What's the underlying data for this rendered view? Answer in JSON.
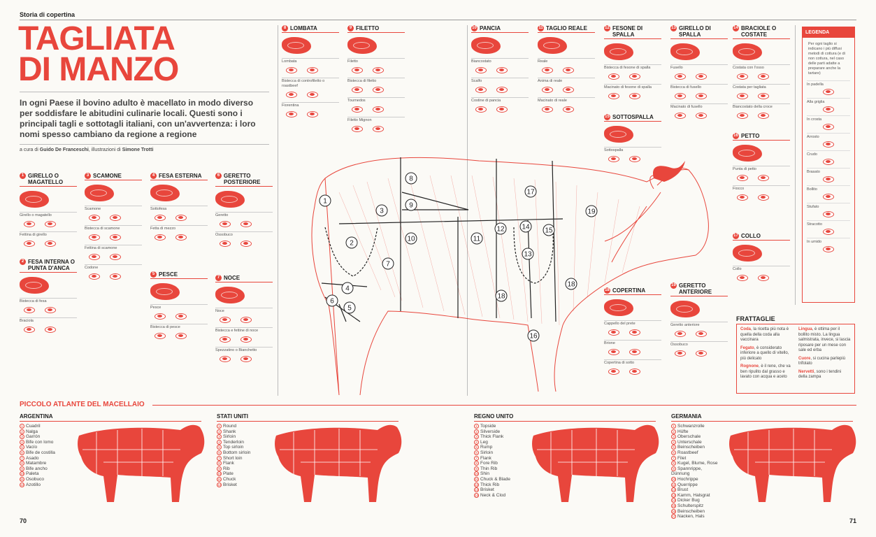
{
  "header": {
    "kicker": "Storia di copertina"
  },
  "title": {
    "line1": "TAGLIATA",
    "line2": "DI MANZO"
  },
  "intro": "In ogni Paese il bovino adulto è macellato in modo diverso per soddisfare le abitudini culinarie locali. Questi sono i principali tagli e sottotagli italiani, con un'avvertenza: i loro nomi spesso cambiano da regione a regione",
  "credits": {
    "prefix": "a cura di ",
    "author": "Guido De Franceschi",
    "mid": ", illustrazioni di ",
    "illustrator": "Simone Trotti"
  },
  "cuts": [
    {
      "id": "1",
      "title": "GIRELLO O MAGATELLO",
      "subs": [
        "Girello o magatello",
        "Fettina di girello"
      ]
    },
    {
      "id": "2",
      "title": "FESA INTERNA O PUNTA D'ANCA",
      "subs": [
        "Bistecca di fesa",
        "Braciola"
      ]
    },
    {
      "id": "3",
      "title": "SCAMONE",
      "subs": [
        "Scamone",
        "Bistecca di scamone",
        "Fettina di scamone",
        "Codone"
      ]
    },
    {
      "id": "4",
      "title": "FESA ESTERNA",
      "subs": [
        "Sottofesa",
        "Fetta di mezzo"
      ]
    },
    {
      "id": "5",
      "title": "PESCE",
      "subs": [
        "Pesce",
        "Bistecca di pesce"
      ]
    },
    {
      "id": "6",
      "title": "GERETTO POSTERIORE",
      "subs": [
        "Geretto",
        "Ossobuco"
      ]
    },
    {
      "id": "7",
      "title": "NOCE",
      "subs": [
        "Noce",
        "Bistecca e fettine di noce",
        "Spezzatino o Bianchetto"
      ]
    },
    {
      "id": "8",
      "title": "LOMBATA",
      "subs": [
        "Lombata",
        "Bistecca di controfiletto o roastbeef",
        "Fiorentina"
      ]
    },
    {
      "id": "9",
      "title": "FILETTO",
      "subs": [
        "Filetto",
        "Bistecca di filetto",
        "Tournedos",
        "Filetto Mignon"
      ]
    },
    {
      "id": "10",
      "title": "PANCIA",
      "subs": [
        "Biancostato",
        "Scalfo",
        "Costine di pancia"
      ]
    },
    {
      "id": "11",
      "title": "TAGLIO REALE",
      "subs": [
        "Reale",
        "Anima di reale",
        "Macinato di reale"
      ]
    },
    {
      "id": "12",
      "title": "FESONE DI SPALLA",
      "subs": [
        "Bistecca di fesone di spalla",
        "Macinato di fesone di spalla"
      ]
    },
    {
      "id": "13",
      "title": "GIRELLO DI SPALLA",
      "subs": [
        "Fusello",
        "Bistecca di fusello",
        "Macinato di fusello"
      ]
    },
    {
      "id": "14",
      "title": "BRACIOLE O COSTATE",
      "subs": [
        "Costata con l'osso",
        "Costata per tagliata",
        "Biancostato della croce"
      ]
    },
    {
      "id": "15",
      "title": "SOTTOSPALLA",
      "subs": [
        "Sottospalla"
      ]
    },
    {
      "id": "16",
      "title": "PETTO",
      "subs": [
        "Punta di petto",
        "Fiocco"
      ]
    },
    {
      "id": "17",
      "title": "COLLO",
      "subs": [
        "Collo"
      ]
    },
    {
      "id": "18",
      "title": "COPERTINA",
      "subs": [
        "Cappello del prete",
        "Brione",
        "Copertina di sotto"
      ]
    },
    {
      "id": "19",
      "title": "GERETTO ANTERIORE",
      "subs": [
        "Geretto anteriore",
        "Ossobuco"
      ]
    }
  ],
  "diagram_numbers": [
    "1",
    "2",
    "3",
    "4",
    "5",
    "6",
    "7",
    "8",
    "9",
    "10",
    "11",
    "12",
    "13",
    "14",
    "15",
    "16",
    "17",
    "18",
    "18",
    "19"
  ],
  "legend": {
    "title": "LEGENDA",
    "intro": "Per ogni taglio si indicano i più diffusi metodi di cottura (e di non cottura, nel caso delle parti adatte a preparare anche la tartare)",
    "items": [
      "In padella",
      "Alla griglia",
      "In crosta",
      "Arrosto",
      "Crudo",
      "Brasato",
      "Bollito",
      "Stufato",
      "Stracotto",
      "In umido"
    ]
  },
  "frattaglie": {
    "title": "FRATTAGLIE",
    "left": [
      {
        "name": "Coda",
        "text": ", la ricetta più nota è quella della coda alla vaccinara"
      },
      {
        "name": "Fegato",
        "text": ", è considerato inferiore a quello di vitello, più delicato"
      },
      {
        "name": "Rognone",
        "text": ", è il rene, che va ben ripulito dal grasso e lavato con acqua e aceto"
      }
    ],
    "right": [
      {
        "name": "Lingua",
        "text": ", è ottima per il bollito misto. La lingua salmistrata, invece, si lascia riposare per un mese con sale ed erba"
      },
      {
        "name": "Cuore",
        "text": ", si cucina parlepiù trifolato"
      },
      {
        "name": "Nervetti",
        "text": ", sono i tendini della zampa"
      }
    ]
  },
  "atlas": {
    "title": "PICCOLO ATLANTE DEL MACELLAIO",
    "countries": [
      {
        "name": "ARGENTINA",
        "cuts": [
          "Cuadril",
          "Nalga",
          "Garrón",
          "Bife con lomo",
          "Vacío",
          "Bife de costilla",
          "Asado",
          "Matambre",
          "Bife ancho",
          "Paleta",
          "Osobuco",
          "Azotillo"
        ]
      },
      {
        "name": "STATI UNITI",
        "cuts": [
          "Round",
          "Shank",
          "Sirloin",
          "Tenderloin",
          "Top sirloin",
          "Bottom sirloin",
          "Short loin",
          "Flank",
          "Rib",
          "Plate",
          "Chuck",
          "Brisket"
        ]
      },
      {
        "name": "REGNO UNITO",
        "cuts": [
          "Topside",
          "Silverside",
          "Thick Flank",
          "Leg",
          "Rump",
          "Sirloin",
          "Flank",
          "Fore Rib",
          "Thin Rib",
          "Shin",
          "Chuck & Blade",
          "Thick Rib",
          "Brisket",
          "Neck & Clod"
        ]
      },
      {
        "name": "GERMANIA",
        "cuts": [
          "Schwanzrolle",
          "Hüfte",
          "Oberschale",
          "Unterschale",
          "Beinscheiben",
          "Roastbeef",
          "Filet",
          "Kugel, Blume, Rose",
          "Spannrippe, Dünnung",
          "Hochrippe",
          "Querrippe",
          "Brust",
          "Kamm, Halsgrat",
          "Dicker Bug",
          "Schulterspitz",
          "Beinscheiben",
          "Nacken, Hals"
        ]
      }
    ]
  },
  "pages": {
    "left": "70",
    "right": "71"
  },
  "colors": {
    "accent": "#e8463c",
    "background": "#fbfaf6"
  }
}
